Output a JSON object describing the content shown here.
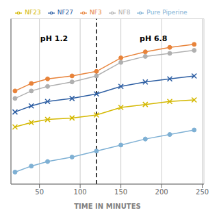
{
  "chart_data": {
    "type": "line",
    "x_label": "TIME IN MINUTES",
    "xlim": [
      15,
      252
    ],
    "xticks": [
      50,
      100,
      150,
      200,
      250
    ],
    "ylim": [
      0,
      110
    ],
    "yticks": [
      0,
      20,
      40,
      60,
      80,
      100
    ],
    "tick_labels": "x",
    "grid": true,
    "legend": "top",
    "series": [
      {
        "name": "Pure Piperine",
        "color": "#7eb0d4",
        "marker": "circle",
        "x": [
          20,
          40,
          60,
          90,
          120,
          150,
          180,
          210,
          240
        ],
        "values": [
          8,
          12,
          15,
          18,
          22,
          26,
          30,
          33,
          36
        ]
      },
      {
        "name": "NF3",
        "color": "#e8833a",
        "marker": "circle",
        "x": [
          20,
          40,
          60,
          90,
          120,
          150,
          180,
          210,
          240
        ],
        "values": [
          62,
          67,
          70,
          72,
          75,
          84,
          88,
          91,
          93
        ]
      },
      {
        "name": "NF8",
        "color": "#b0b0b0",
        "marker": "circle",
        "x": [
          20,
          40,
          60,
          90,
          120,
          150,
          180,
          210,
          240
        ],
        "values": [
          57,
          62,
          65,
          68,
          72,
          81,
          85,
          87,
          89
        ]
      },
      {
        "name": "NF23",
        "color": "#d4b800",
        "marker": "x",
        "x": [
          20,
          40,
          60,
          90,
          120,
          150,
          180,
          210,
          240
        ],
        "values": [
          38,
          41,
          43,
          44,
          46,
          51,
          53,
          55,
          56
        ]
      },
      {
        "name": "NF27",
        "color": "#2e5fa3",
        "marker": "x",
        "x": [
          20,
          40,
          60,
          90,
          120,
          150,
          180,
          210,
          240
        ],
        "values": [
          48,
          52,
          55,
          57,
          60,
          65,
          68,
          70,
          72
        ]
      }
    ],
    "reference_lines": [
      {
        "x": 120,
        "line_style": "dashed",
        "color": "#000000"
      }
    ],
    "annotations": [
      {
        "text": "pH 1.2",
        "x": 68,
        "y": 97
      },
      {
        "text": "pH 6.8",
        "x": 190,
        "y": 97
      }
    ]
  }
}
